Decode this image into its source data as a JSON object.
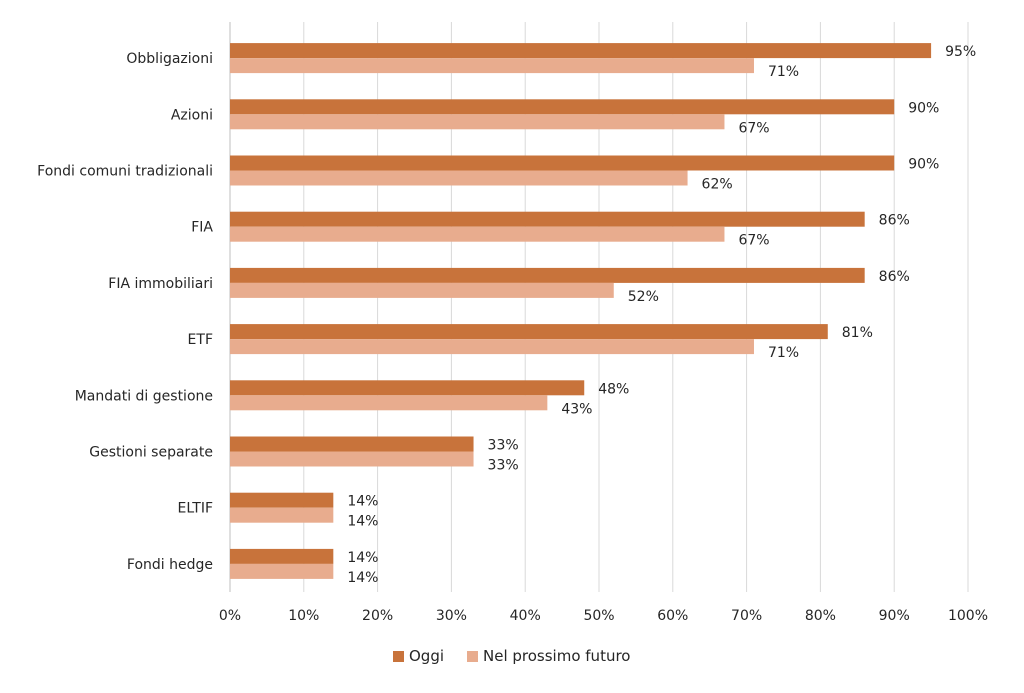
{
  "chart_data": {
    "type": "bar",
    "orientation": "horizontal",
    "categories": [
      "Obbligazioni",
      "Azioni",
      "Fondi comuni tradizionali",
      "FIA",
      "FIA immobiliari",
      "ETF",
      "Mandati di gestione",
      "Gestioni separate",
      "ELTIF",
      "Fondi hedge"
    ],
    "series": [
      {
        "name": "Oggi",
        "color": "#c8733b",
        "values": [
          95,
          90,
          90,
          86,
          86,
          81,
          48,
          33,
          14,
          14
        ]
      },
      {
        "name": "Nel prossimo futuro",
        "color": "#e8ac8e",
        "values": [
          71,
          67,
          62,
          67,
          52,
          71,
          43,
          33,
          14,
          14
        ]
      }
    ],
    "xlim": [
      0,
      100
    ],
    "xticks": [
      0,
      10,
      20,
      30,
      40,
      50,
      60,
      70,
      80,
      90,
      100
    ],
    "tick_suffix": "%",
    "value_suffix": "%",
    "grid": "vertical",
    "legend_position": "bottom"
  }
}
